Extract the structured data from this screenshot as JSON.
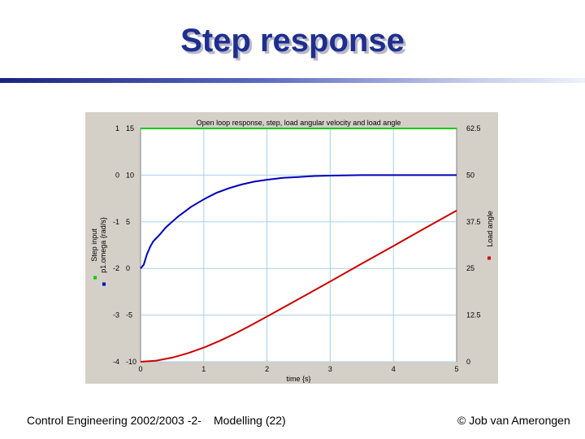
{
  "slide": {
    "title": "Step response"
  },
  "footer": {
    "left": "Control Engineering 2002/2003 -2-",
    "center": "Modelling  (22)",
    "right": "© Job van Amerongen"
  },
  "colors": {
    "step_input": "#00cc00",
    "p1_omega": "#0000bb",
    "load_angle": "#cc0000",
    "plot_background": "#ffffff",
    "panel_background": "#d4d0c8",
    "grid": "#a8d0e8"
  },
  "chart_data": {
    "type": "line",
    "title": "Open loop response, step, load angular velocity and load angle",
    "xlabel": "time {s}",
    "xlim": [
      0,
      5
    ],
    "xticks": [
      "0",
      "1",
      "2",
      "3",
      "4",
      "5"
    ],
    "left_axes": [
      {
        "label": "Step input",
        "ylim": [
          -4,
          1
        ],
        "ticks": [
          "1",
          "0",
          "-1",
          "-2",
          "-3",
          "-4"
        ]
      },
      {
        "label": "p1.omega {rad/s}",
        "ylim": [
          -10,
          15
        ],
        "ticks": [
          "15",
          "10",
          "5",
          "0",
          "-5",
          "-10"
        ]
      }
    ],
    "right_axis": {
      "label": "Load angle",
      "ylim": [
        0,
        62.5
      ],
      "ticks": [
        "62.5",
        "50",
        "37.5",
        "25",
        "12.5",
        "0"
      ]
    },
    "grid": true,
    "series": [
      {
        "name": "Step input",
        "axis": "step",
        "x": [
          0,
          5
        ],
        "y": [
          1,
          1
        ]
      },
      {
        "name": "p1.omega {rad/s}",
        "axis": "omega",
        "x": [
          0,
          0.05,
          0.1,
          0.15,
          0.2,
          0.3,
          0.4,
          0.5,
          0.6,
          0.7,
          0.8,
          0.9,
          1.0,
          1.2,
          1.4,
          1.6,
          1.8,
          2.0,
          2.25,
          2.5,
          2.75,
          3.0,
          3.5,
          4.0,
          4.5,
          5.0
        ],
        "y": [
          0,
          0.4,
          1.5,
          2.3,
          2.9,
          3.6,
          4.4,
          5.0,
          5.6,
          6.1,
          6.6,
          7.0,
          7.4,
          8.1,
          8.6,
          9.0,
          9.3,
          9.5,
          9.7,
          9.8,
          9.9,
          9.95,
          10.0,
          10.0,
          10.0,
          10.0
        ]
      },
      {
        "name": "Load angle",
        "axis": "angle",
        "x": [
          0,
          0.25,
          0.5,
          0.75,
          1.0,
          1.25,
          1.5,
          1.75,
          2.0,
          2.5,
          3.0,
          3.5,
          4.0,
          4.5,
          5.0
        ],
        "y": [
          0,
          0.3,
          1.1,
          2.3,
          3.8,
          5.6,
          7.6,
          9.8,
          12.1,
          16.8,
          21.5,
          26.3,
          31.0,
          35.8,
          40.5
        ]
      }
    ]
  }
}
